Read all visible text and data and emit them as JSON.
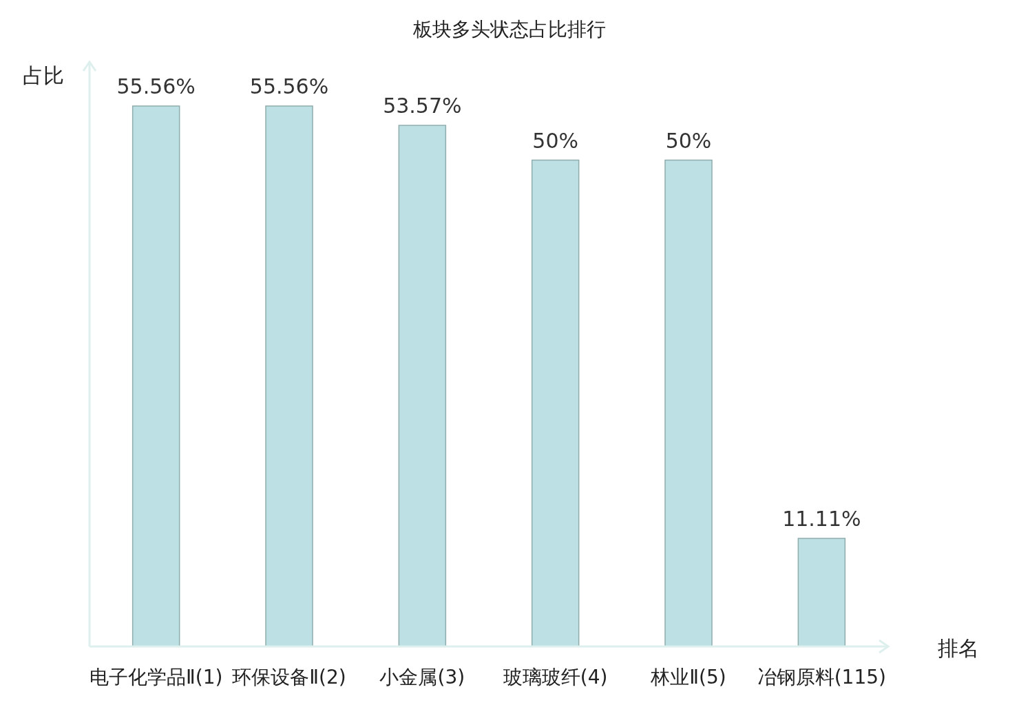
{
  "chart_data": {
    "type": "bar",
    "title": "板块多头状态占比排行",
    "xlabel": "排名",
    "ylabel": "占比",
    "categories": [
      "电子化学品Ⅱ(1)",
      "环保设备Ⅱ(2)",
      "小金属(3)",
      "玻璃玻纤(4)",
      "林业Ⅱ(5)",
      "冶钢原料(115)"
    ],
    "values": [
      55.56,
      55.56,
      53.57,
      50,
      50,
      11.11
    ],
    "value_labels": [
      "55.56%",
      "55.56%",
      "53.57%",
      "50%",
      "50%",
      "11.11%"
    ],
    "color": "#bce0e3",
    "grid": false
  }
}
